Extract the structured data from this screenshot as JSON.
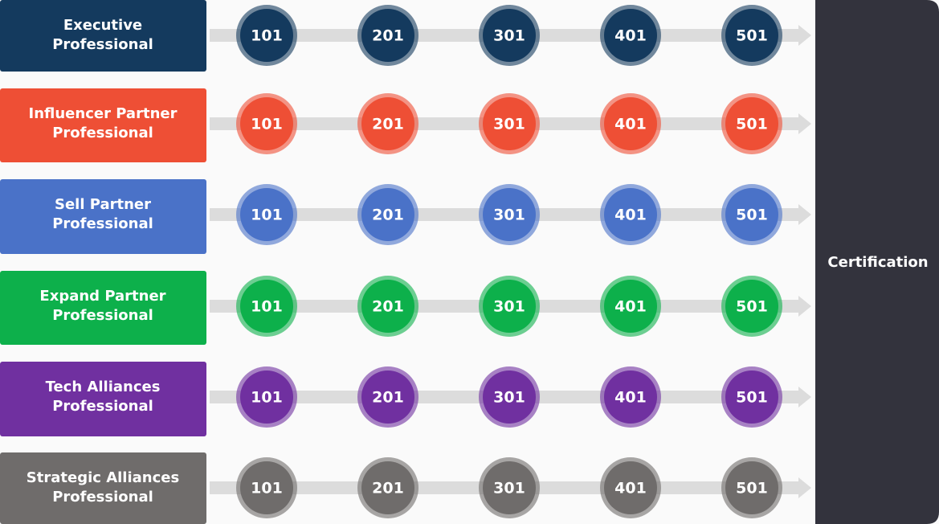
{
  "tracks": [
    {
      "label": [
        "Executive",
        "Professional"
      ],
      "color": "#143a5e",
      "levels": [
        "101",
        "201",
        "301",
        "401",
        "501"
      ]
    },
    {
      "label": [
        "Influencer Partner",
        "Professional"
      ],
      "color": "#ee4f35",
      "levels": [
        "101",
        "201",
        "301",
        "401",
        "501"
      ]
    },
    {
      "label": [
        "Sell Partner",
        "Professional"
      ],
      "color": "#4a72c8",
      "levels": [
        "101",
        "201",
        "301",
        "401",
        "501"
      ]
    },
    {
      "label": [
        "Expand Partner",
        "Professional"
      ],
      "color": "#0db04b",
      "levels": [
        "101",
        "201",
        "301",
        "401",
        "501"
      ]
    },
    {
      "label": [
        "Tech Alliances",
        "Professional"
      ],
      "color": "#7030a0",
      "levels": [
        "101",
        "201",
        "301",
        "401",
        "501"
      ]
    },
    {
      "label": [
        "Strategic Alliances",
        "Professional"
      ],
      "color": "#6f6c6b",
      "levels": [
        "101",
        "201",
        "301",
        "401",
        "501"
      ]
    }
  ],
  "certification": "Certification"
}
